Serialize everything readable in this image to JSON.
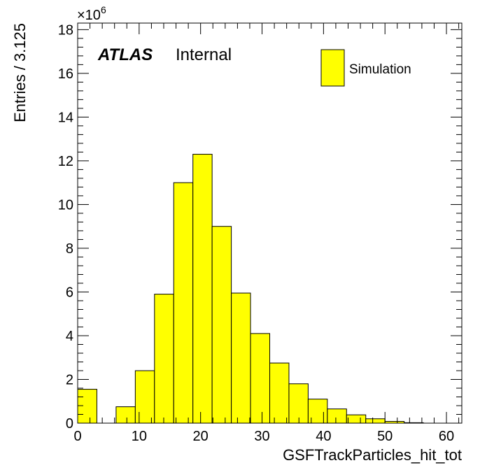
{
  "chart_data": {
    "type": "bar",
    "histogram": true,
    "bin_width": 3.125,
    "x_range": [
      0,
      62.5
    ],
    "ylim": [
      0,
      18.3
    ],
    "y_multiplier_label": "×10",
    "y_multiplier_exponent": "6",
    "bins": [
      {
        "x": 0.0,
        "value": 1.55
      },
      {
        "x": 3.125,
        "value": 0.0
      },
      {
        "x": 6.25,
        "value": 0.75
      },
      {
        "x": 9.375,
        "value": 2.4
      },
      {
        "x": 12.5,
        "value": 5.9
      },
      {
        "x": 15.625,
        "value": 11.0
      },
      {
        "x": 18.75,
        "value": 12.3
      },
      {
        "x": 21.875,
        "value": 9.0
      },
      {
        "x": 25.0,
        "value": 5.95
      },
      {
        "x": 28.125,
        "value": 4.1
      },
      {
        "x": 31.25,
        "value": 2.75
      },
      {
        "x": 34.375,
        "value": 1.8
      },
      {
        "x": 37.5,
        "value": 1.1
      },
      {
        "x": 40.625,
        "value": 0.65
      },
      {
        "x": 43.75,
        "value": 0.38
      },
      {
        "x": 46.875,
        "value": 0.2
      },
      {
        "x": 50.0,
        "value": 0.08
      },
      {
        "x": 53.125,
        "value": 0.02
      },
      {
        "x": 56.25,
        "value": 0.0
      },
      {
        "x": 59.375,
        "value": 0.0
      }
    ],
    "x_ticks": [
      0,
      10,
      20,
      30,
      40,
      50,
      60
    ],
    "y_ticks": [
      0,
      2,
      4,
      6,
      8,
      10,
      12,
      14,
      16,
      18
    ],
    "xlabel": "GSFTrackParticles_hit_tot",
    "ylabel": "Entries / 3.125",
    "fill_color": "#ffff00",
    "line_color": "#000000",
    "legend": {
      "label": "Simulation",
      "placement": "top-right"
    },
    "annotations": {
      "atlas": "ATLAS",
      "status": "Internal"
    }
  }
}
